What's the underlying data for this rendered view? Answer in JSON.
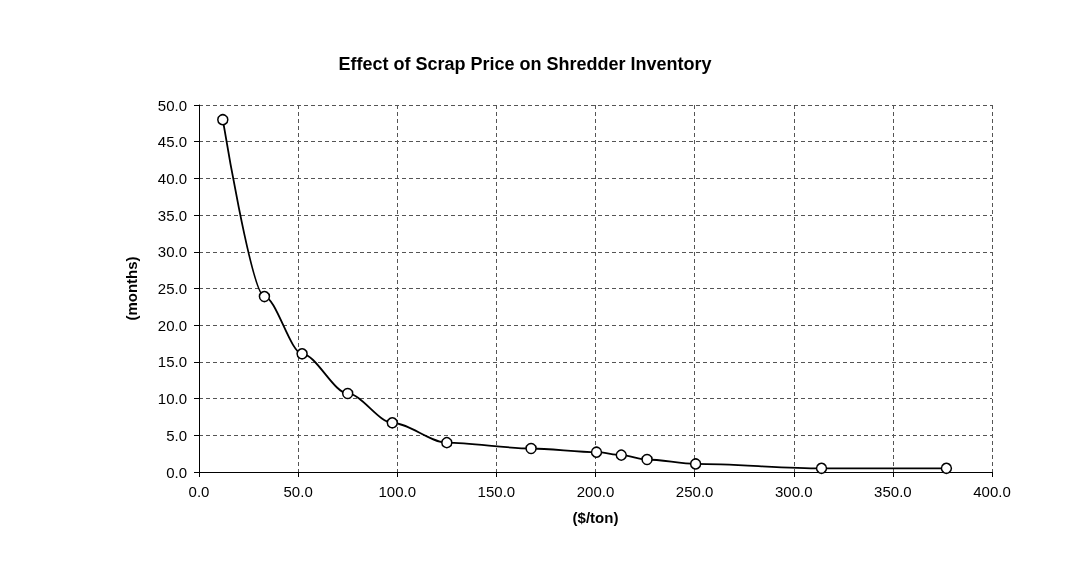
{
  "chart_data": {
    "type": "line",
    "title": "Effect of Scrap Price on Shredder Inventory",
    "xlabel": "($/ton)",
    "ylabel": "(months)",
    "x": [
      12,
      33,
      52,
      75,
      97.5,
      125,
      167.5,
      200.5,
      213,
      226,
      250.5,
      314,
      377
    ],
    "series": [
      {
        "color": "#000000",
        "values": [
          48,
          23.9,
          16.1,
          10.7,
          6.7,
          4.0,
          3.2,
          2.7,
          2.3,
          1.7,
          1.1,
          0.5,
          0.5
        ]
      }
    ],
    "xlim": [
      0,
      400
    ],
    "ylim": [
      0,
      50
    ],
    "xticks": [
      {
        "value": 0,
        "label": "0.0"
      },
      {
        "value": 50,
        "label": "50.0"
      },
      {
        "value": 100,
        "label": "100.0"
      },
      {
        "value": 150,
        "label": "150.0"
      },
      {
        "value": 200,
        "label": "200.0"
      },
      {
        "value": 250,
        "label": "250.0"
      },
      {
        "value": 300,
        "label": "300.0"
      },
      {
        "value": 350,
        "label": "350.0"
      },
      {
        "value": 400,
        "label": "400.0"
      }
    ],
    "yticks": [
      {
        "value": 0,
        "label": "0.0"
      },
      {
        "value": 5,
        "label": "5.0"
      },
      {
        "value": 10,
        "label": "10.0"
      },
      {
        "value": 15,
        "label": "15.0"
      },
      {
        "value": 20,
        "label": "20.0"
      },
      {
        "value": 25,
        "label": "25.0"
      },
      {
        "value": 30,
        "label": "30.0"
      },
      {
        "value": 35,
        "label": "35.0"
      },
      {
        "value": 40,
        "label": "40.0"
      },
      {
        "value": 45,
        "label": "45.0"
      },
      {
        "value": 50,
        "label": "50.0"
      }
    ],
    "grid": true,
    "marker": "circle",
    "line_style": "solid"
  }
}
